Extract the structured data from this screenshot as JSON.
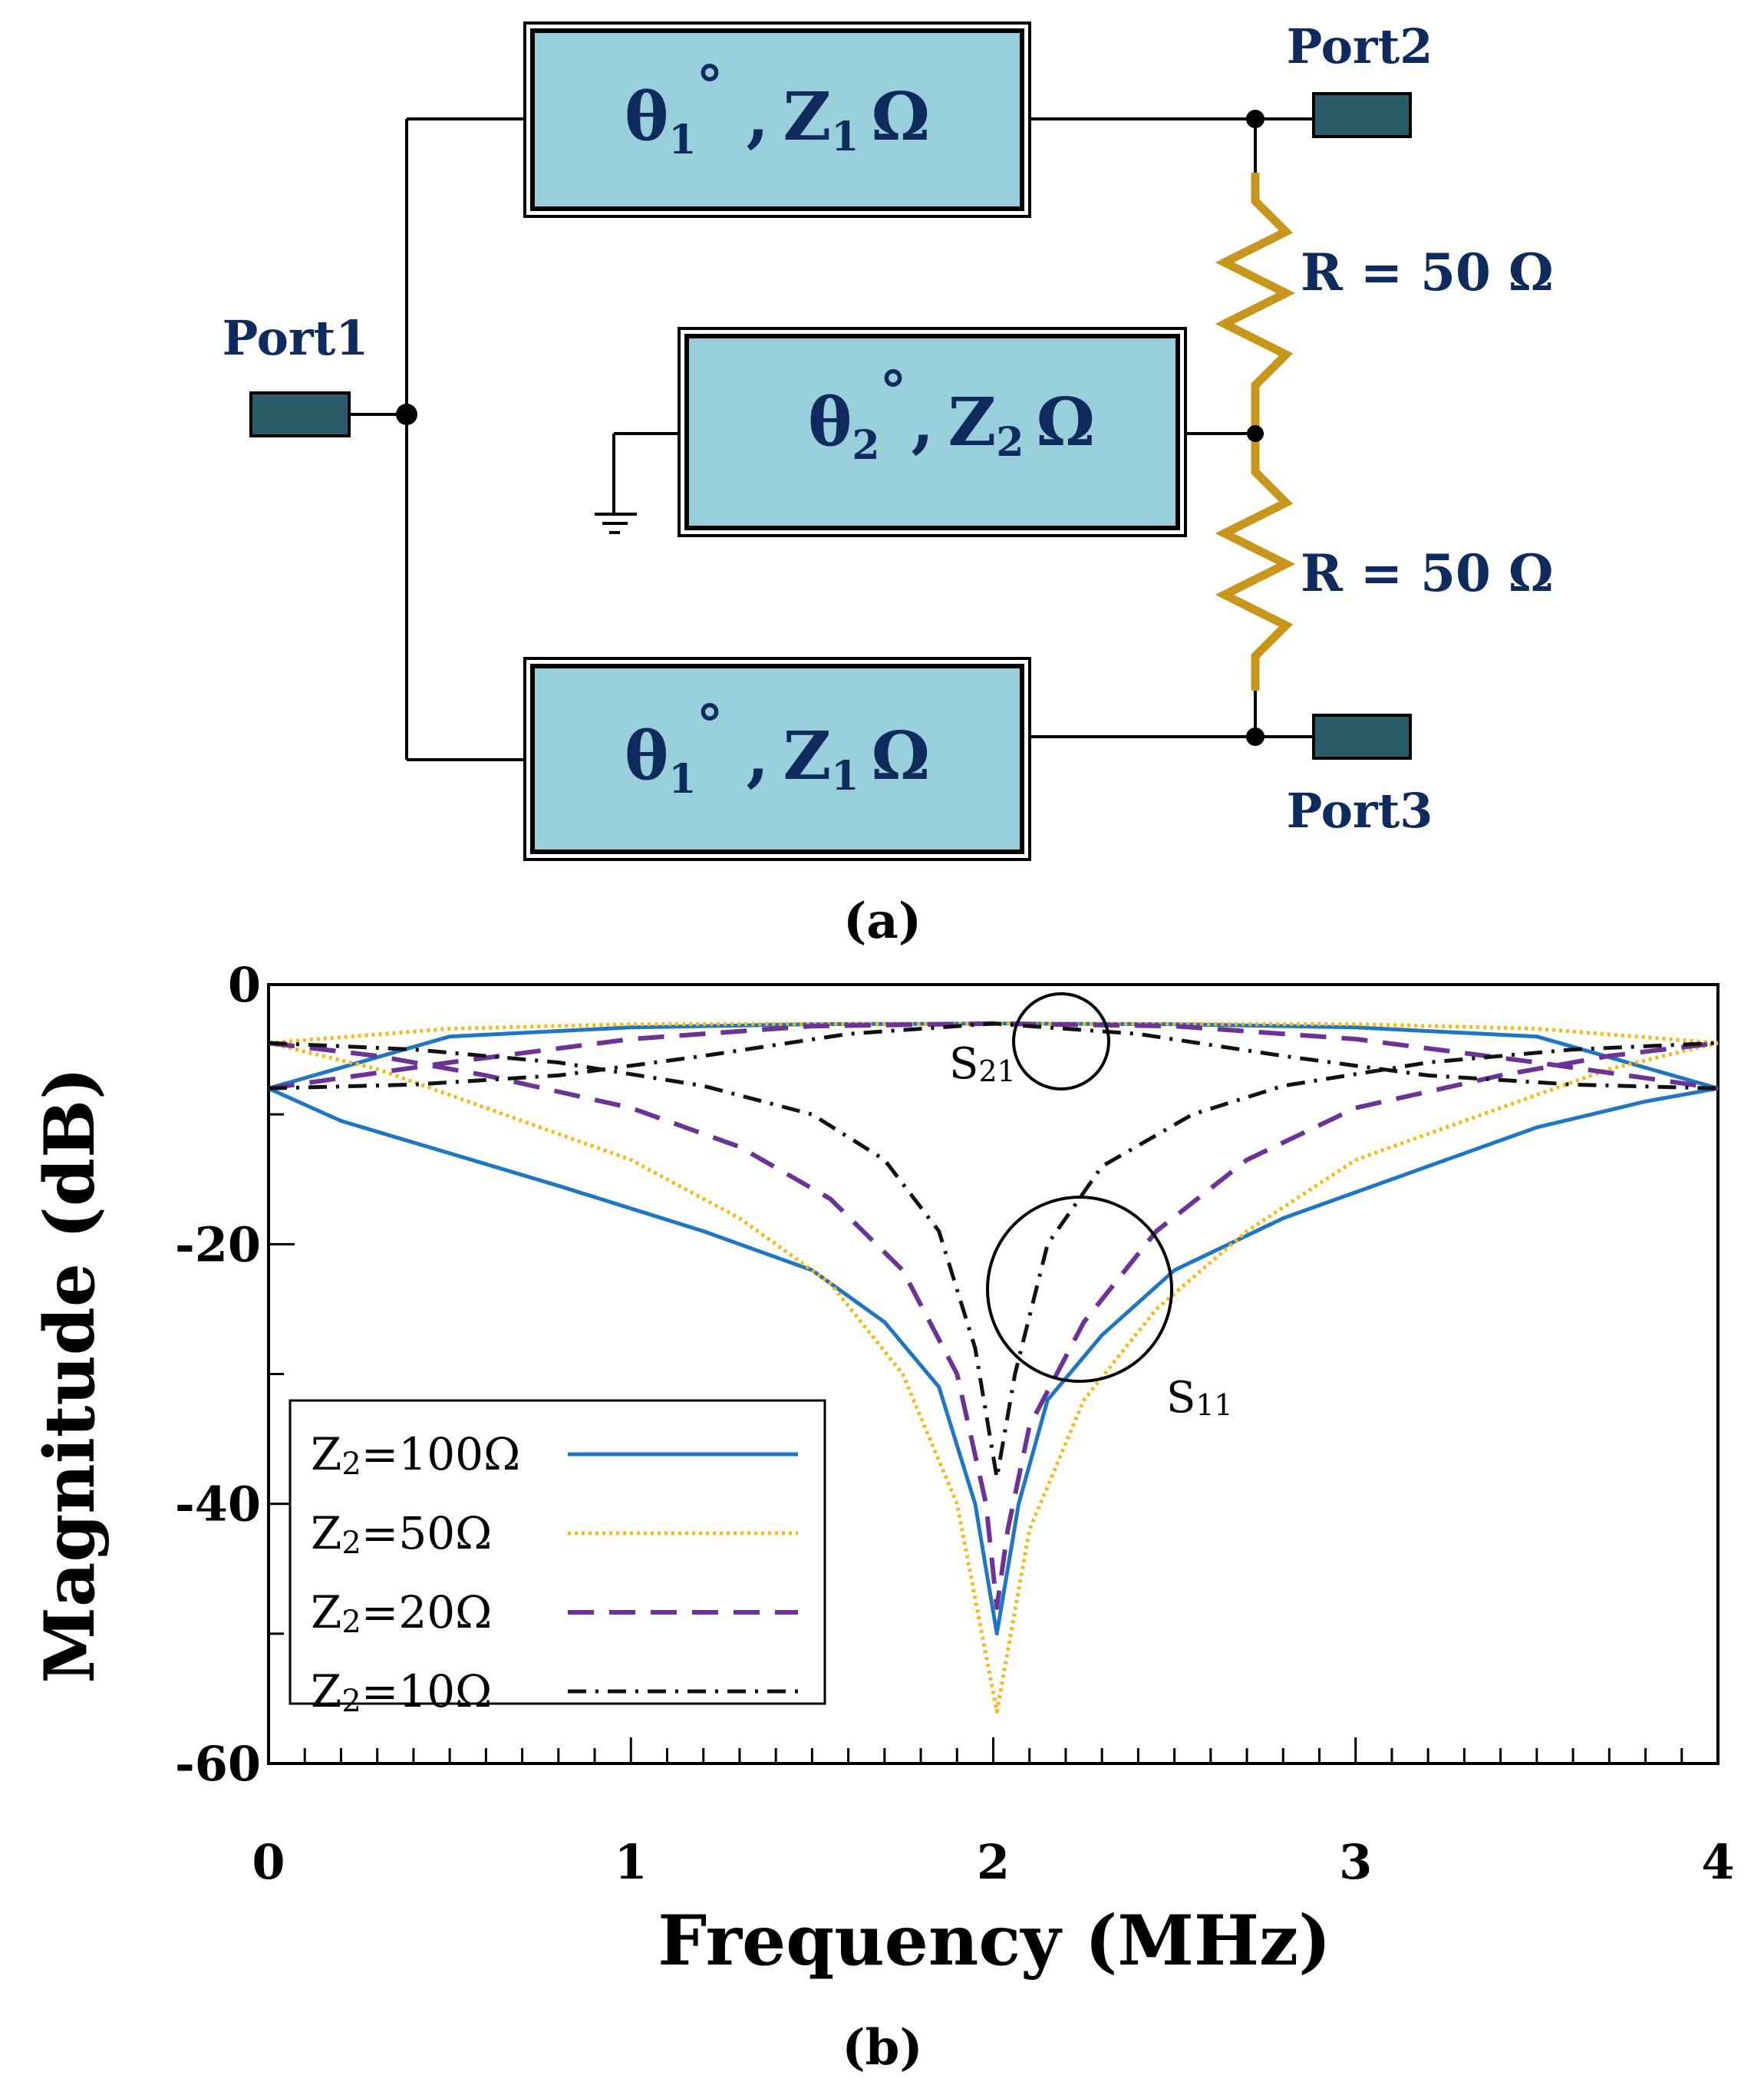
{
  "circuit": {
    "port1": "Port1",
    "port2": "Port2",
    "port3": "Port3",
    "upper_line": {
      "theta": "θ",
      "theta_sub": "1",
      "deg": "°",
      "sep": ",",
      "z": "Z",
      "z_sub": "1",
      "unit": "Ω"
    },
    "middle_line": {
      "theta": "θ",
      "theta_sub": "2",
      "deg": "°",
      "sep": ",",
      "z": "Z",
      "z_sub": "2",
      "unit": "Ω"
    },
    "lower_line": {
      "theta": "θ",
      "theta_sub": "1",
      "deg": "°",
      "sep": ",",
      "z": "Z",
      "z_sub": "1",
      "unit": "Ω"
    },
    "resistor_top": "R = 50 Ω",
    "resistor_bottom": "R = 50 Ω",
    "caption": "(a)",
    "colors": {
      "line_box": "#97cfdb",
      "port": "#2a5d67",
      "resistor": "#c8961b",
      "text": "#0f2a5c"
    }
  },
  "chart_data": {
    "type": "line",
    "caption": "(b)",
    "xlabel": "Frequency (MHz)",
    "ylabel": "Magnitude (dB)",
    "xlim": [
      0,
      4
    ],
    "ylim": [
      -60,
      0
    ],
    "xticks": [
      "0",
      "1",
      "2",
      "3",
      "4"
    ],
    "yticks": [
      "0",
      "-20",
      "-40",
      "-60"
    ],
    "annotations": {
      "s21": {
        "base": "S",
        "sub": "21"
      },
      "s11": {
        "base": "S",
        "sub": "11"
      }
    },
    "legend_position": "bottom-left",
    "series": [
      {
        "name": "Z2=100Ω",
        "label_base": "Z",
        "label_sub": "2",
        "label_rest": "=100Ω",
        "color": "#1f77c4",
        "dash": "solid",
        "s11": [
          [
            0,
            -8
          ],
          [
            0.2,
            -10.5
          ],
          [
            0.5,
            -13
          ],
          [
            0.8,
            -15.5
          ],
          [
            1.2,
            -19
          ],
          [
            1.5,
            -22
          ],
          [
            1.7,
            -26
          ],
          [
            1.85,
            -31
          ],
          [
            1.95,
            -40
          ],
          [
            2.01,
            -50
          ],
          [
            2.07,
            -40
          ],
          [
            2.15,
            -32
          ],
          [
            2.3,
            -27
          ],
          [
            2.5,
            -22
          ],
          [
            2.8,
            -18
          ],
          [
            3.2,
            -14
          ],
          [
            3.5,
            -11
          ],
          [
            3.8,
            -9
          ],
          [
            4,
            -8
          ]
        ],
        "s21": [
          [
            0,
            -8
          ],
          [
            0.5,
            -4
          ],
          [
            1,
            -3.3
          ],
          [
            1.5,
            -3.05
          ],
          [
            2,
            -3
          ],
          [
            2.5,
            -3.05
          ],
          [
            3,
            -3.3
          ],
          [
            3.5,
            -4
          ],
          [
            4,
            -8
          ]
        ]
      },
      {
        "name": "Z2=50Ω",
        "label_base": "Z",
        "label_sub": "2",
        "label_rest": "=50Ω",
        "color": "#f7b916",
        "dash": "dotted",
        "s11": [
          [
            0,
            -4.5
          ],
          [
            0.3,
            -6.5
          ],
          [
            0.6,
            -9.5
          ],
          [
            1,
            -13.5
          ],
          [
            1.3,
            -18
          ],
          [
            1.55,
            -23
          ],
          [
            1.75,
            -30
          ],
          [
            1.9,
            -40
          ],
          [
            2.01,
            -56
          ],
          [
            2.1,
            -42
          ],
          [
            2.25,
            -32
          ],
          [
            2.45,
            -25
          ],
          [
            2.7,
            -19
          ],
          [
            3,
            -13.5
          ],
          [
            3.4,
            -9.5
          ],
          [
            3.7,
            -6.5
          ],
          [
            4,
            -4.5
          ]
        ],
        "s21": [
          [
            0,
            -4.5
          ],
          [
            0.5,
            -3.4
          ],
          [
            1,
            -3.05
          ],
          [
            2,
            -3
          ],
          [
            3,
            -3.05
          ],
          [
            3.5,
            -3.4
          ],
          [
            4,
            -4.5
          ]
        ]
      },
      {
        "name": "Z2=20Ω",
        "label_base": "Z",
        "label_sub": "2",
        "label_rest": "=20Ω",
        "color": "#6c3396",
        "dash": "dashed",
        "s11": [
          [
            0,
            -4.5
          ],
          [
            0.3,
            -5.5
          ],
          [
            0.6,
            -7
          ],
          [
            1,
            -9.5
          ],
          [
            1.3,
            -12.5
          ],
          [
            1.55,
            -16.5
          ],
          [
            1.75,
            -22
          ],
          [
            1.9,
            -30
          ],
          [
            1.98,
            -40
          ],
          [
            2.01,
            -48
          ],
          [
            2.04,
            -42
          ],
          [
            2.1,
            -34
          ],
          [
            2.25,
            -26
          ],
          [
            2.45,
            -19
          ],
          [
            2.7,
            -13.5
          ],
          [
            3,
            -9.5
          ],
          [
            3.4,
            -7
          ],
          [
            3.7,
            -5.5
          ],
          [
            4,
            -4.5
          ]
        ],
        "s21": [
          [
            0,
            -8
          ],
          [
            0.5,
            -6
          ],
          [
            1,
            -4.2
          ],
          [
            1.5,
            -3.2
          ],
          [
            2,
            -3
          ],
          [
            2.5,
            -3.2
          ],
          [
            3,
            -4.2
          ],
          [
            3.5,
            -6
          ],
          [
            4,
            -8
          ]
        ]
      },
      {
        "name": "Z2=10Ω",
        "label_base": "Z",
        "label_sub": "2",
        "label_rest": "=10Ω",
        "color": "#111111",
        "dash": "dashdot",
        "s11": [
          [
            0,
            -4.5
          ],
          [
            0.4,
            -5
          ],
          [
            0.8,
            -6
          ],
          [
            1.2,
            -7.8
          ],
          [
            1.5,
            -10
          ],
          [
            1.7,
            -13.5
          ],
          [
            1.85,
            -19
          ],
          [
            1.95,
            -28
          ],
          [
            2.01,
            -38
          ],
          [
            2.06,
            -30
          ],
          [
            2.15,
            -20
          ],
          [
            2.3,
            -14
          ],
          [
            2.55,
            -10
          ],
          [
            2.8,
            -7.8
          ],
          [
            3.2,
            -6
          ],
          [
            3.6,
            -5
          ],
          [
            4,
            -4.5
          ]
        ],
        "s21": [
          [
            0,
            -8
          ],
          [
            0.4,
            -7.7
          ],
          [
            0.8,
            -7
          ],
          [
            1.2,
            -5.5
          ],
          [
            1.6,
            -3.8
          ],
          [
            2,
            -3
          ],
          [
            2.4,
            -3.8
          ],
          [
            2.8,
            -5.5
          ],
          [
            3.2,
            -7
          ],
          [
            3.6,
            -7.7
          ],
          [
            4,
            -8
          ]
        ]
      }
    ]
  }
}
